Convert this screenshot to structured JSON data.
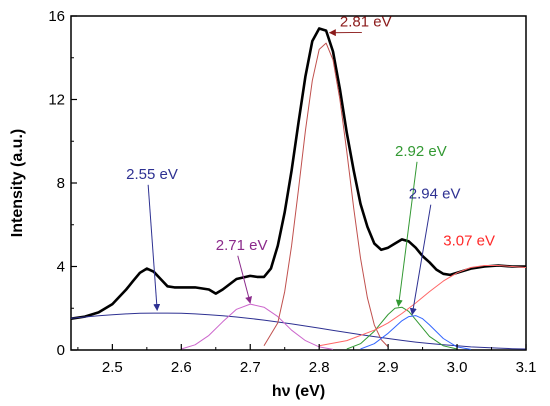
{
  "chart_data": {
    "type": "line",
    "xlabel": "hν (eV)",
    "ylabel": "Intensity (a.u.)",
    "xlim": [
      2.44,
      3.1
    ],
    "ylim": [
      0,
      16
    ],
    "xticks": [
      "2.5",
      "2.6",
      "2.7",
      "2.8",
      "2.9",
      "3.0",
      "3.1"
    ],
    "xtick_values": [
      2.5,
      2.6,
      2.7,
      2.8,
      2.9,
      3.0,
      3.1
    ],
    "yticks": [
      "0",
      "4",
      "8",
      "12",
      "16"
    ],
    "ytick_values": [
      0,
      4,
      8,
      12,
      16
    ],
    "grid": false,
    "series": [
      {
        "color": "#000000",
        "x": [
          2.44,
          2.46,
          2.48,
          2.5,
          2.52,
          2.53,
          2.54,
          2.55,
          2.56,
          2.57,
          2.58,
          2.59,
          2.6,
          2.62,
          2.64,
          2.65,
          2.66,
          2.68,
          2.7,
          2.71,
          2.72,
          2.73,
          2.74,
          2.75,
          2.76,
          2.77,
          2.78,
          2.79,
          2.8,
          2.81,
          2.82,
          2.83,
          2.84,
          2.85,
          2.86,
          2.87,
          2.88,
          2.89,
          2.9,
          2.91,
          2.92,
          2.93,
          2.94,
          2.95,
          2.96,
          2.97,
          2.98,
          2.99,
          3.0,
          3.02,
          3.04,
          3.06,
          3.08,
          3.1
        ],
        "y": [
          1.5,
          1.6,
          1.8,
          2.2,
          2.9,
          3.3,
          3.7,
          3.9,
          3.75,
          3.4,
          3.05,
          3.0,
          3.0,
          3.0,
          2.9,
          2.7,
          2.9,
          3.4,
          3.55,
          3.5,
          3.5,
          3.9,
          5.0,
          6.6,
          8.6,
          10.9,
          13.1,
          14.8,
          15.4,
          15.3,
          14.3,
          12.5,
          10.4,
          8.6,
          7.0,
          5.9,
          5.1,
          4.8,
          4.9,
          5.1,
          5.3,
          5.2,
          4.9,
          4.5,
          4.2,
          3.85,
          3.65,
          3.6,
          3.7,
          3.9,
          4.0,
          4.05,
          4.0,
          4.0
        ]
      },
      {
        "color": "#2e3192",
        "x": [
          2.44,
          2.46,
          2.48,
          2.5,
          2.52,
          2.54,
          2.56,
          2.58,
          2.6,
          2.62,
          2.64,
          2.66,
          2.68,
          2.7,
          2.72,
          2.74,
          2.76,
          2.78,
          2.8,
          2.82,
          2.84,
          2.86,
          2.88,
          2.9,
          2.92,
          2.94,
          2.96,
          2.98,
          3.0,
          3.02,
          3.04,
          3.06,
          3.08,
          3.1
        ],
        "y": [
          1.52,
          1.58,
          1.64,
          1.69,
          1.73,
          1.76,
          1.77,
          1.77,
          1.76,
          1.73,
          1.69,
          1.64,
          1.58,
          1.51,
          1.43,
          1.34,
          1.25,
          1.15,
          1.05,
          0.94,
          0.84,
          0.74,
          0.64,
          0.55,
          0.46,
          0.38,
          0.31,
          0.25,
          0.2,
          0.15,
          0.12,
          0.09,
          0.06,
          0.05
        ]
      },
      {
        "color": "#cc66cc",
        "x": [
          2.6,
          2.62,
          2.64,
          2.66,
          2.68,
          2.7,
          2.72,
          2.74,
          2.76,
          2.78,
          2.8,
          2.82
        ],
        "y": [
          0.05,
          0.25,
          0.7,
          1.35,
          1.95,
          2.2,
          2.05,
          1.6,
          0.95,
          0.45,
          0.15,
          0.03
        ]
      },
      {
        "color": "#c0504d",
        "x": [
          2.72,
          2.74,
          2.75,
          2.76,
          2.77,
          2.78,
          2.79,
          2.8,
          2.81,
          2.82,
          2.83,
          2.84,
          2.85,
          2.86,
          2.87,
          2.88,
          2.89,
          2.9
        ],
        "y": [
          0.2,
          1.3,
          2.8,
          5.0,
          7.7,
          10.5,
          12.9,
          14.4,
          14.7,
          13.9,
          12.0,
          9.5,
          6.8,
          4.4,
          2.5,
          1.2,
          0.5,
          0.15
        ]
      },
      {
        "color": "#339933",
        "x": [
          2.84,
          2.86,
          2.88,
          2.9,
          2.91,
          2.92,
          2.93,
          2.94,
          2.96,
          2.98,
          3.0
        ],
        "y": [
          0.05,
          0.3,
          0.9,
          1.7,
          2.0,
          2.05,
          1.85,
          1.45,
          0.65,
          0.2,
          0.05
        ]
      },
      {
        "color": "#3366ff",
        "x": [
          2.86,
          2.88,
          2.9,
          2.92,
          2.93,
          2.94,
          2.95,
          2.96,
          2.98,
          3.0,
          3.02
        ],
        "y": [
          0.05,
          0.3,
          0.8,
          1.4,
          1.6,
          1.65,
          1.5,
          1.2,
          0.55,
          0.15,
          0.03
        ]
      },
      {
        "color": "#ff6666",
        "x": [
          2.8,
          2.84,
          2.88,
          2.9,
          2.92,
          2.94,
          2.96,
          2.98,
          3.0,
          3.02,
          3.04,
          3.06,
          3.08,
          3.1
        ],
        "y": [
          0.2,
          0.45,
          0.95,
          1.3,
          1.75,
          2.25,
          2.8,
          3.3,
          3.7,
          3.95,
          4.05,
          4.05,
          4.0,
          3.95
        ]
      }
    ],
    "annotations": [
      {
        "text": "2.55 eV",
        "color": "#2e3192",
        "x": 2.52,
        "y": 8.2,
        "ax": 2.565,
        "ay": 1.9
      },
      {
        "text": "2.71 eV",
        "color": "#8b2a8b",
        "x": 2.65,
        "y": 4.8,
        "ax": 2.7,
        "ay": 2.25
      },
      {
        "text": "2.81 eV",
        "color": "#8b1a1a",
        "x": 2.83,
        "y": 15.5,
        "ax": 2.815,
        "ay": 15.2
      },
      {
        "text": "2.92 eV",
        "color": "#339933",
        "x": 2.91,
        "y": 9.3,
        "ax": 2.915,
        "ay": 2.1
      },
      {
        "text": "2.94 eV",
        "color": "#2e3192",
        "x": 2.93,
        "y": 7.25,
        "ax": 2.935,
        "ay": 1.7
      },
      {
        "text": "3.07 eV",
        "color": "#ff2a2a",
        "x": 2.98,
        "y": 5.0,
        "ax": null,
        "ay": null
      }
    ]
  }
}
